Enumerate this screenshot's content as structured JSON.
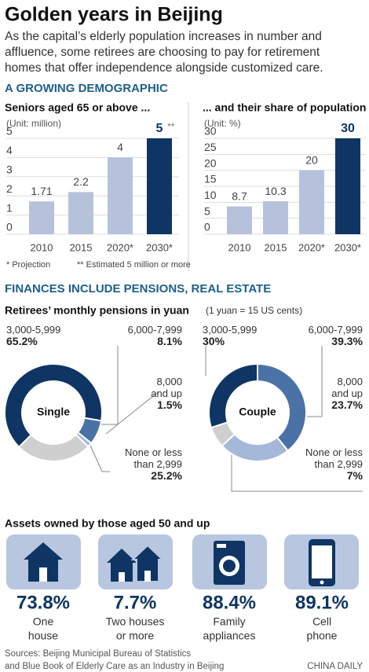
{
  "title": "Golden years in Beijing",
  "subtitle": [
    "As the capital’s elderly population increases in number and",
    "affluence, some retirees are choosing to pay for retirement",
    "homes that offer independence alongside customized care."
  ],
  "section_1": "A GROWING DEMOGRAPHIC",
  "section_2": "FINANCES INCLUDE PENSIONS, REAL ESTATE",
  "pensions_title": "Retirees’ monthly pensions in yuan",
  "pensions_note": "(1 yuan = 15 US cents)",
  "chart_data": [
    {
      "type": "bar",
      "title": "Seniors aged 65 or above ...",
      "unit": "(Unit: million)",
      "categories": [
        "2010",
        "2015",
        "2020*",
        "2030*"
      ],
      "values": [
        1.71,
        2.2,
        4,
        5
      ],
      "colors": [
        "#b6c2dc",
        "#b6c2dc",
        "#b6c2dc",
        "#0e3563"
      ],
      "ylim": [
        0,
        5
      ],
      "yticks": [
        0,
        1,
        2,
        3,
        4,
        5
      ],
      "grid": true,
      "annotation": "**",
      "notes": [
        "* Projection",
        "** Estimated 5 million or more"
      ]
    },
    {
      "type": "bar",
      "title": "... and their share of population",
      "unit": "(Unit: %)",
      "categories": [
        "2010",
        "2015",
        "2020*",
        "2030*"
      ],
      "values": [
        8.7,
        10.3,
        20,
        30
      ],
      "colors": [
        "#b6c2dc",
        "#b6c2dc",
        "#b6c2dc",
        "#0e3563"
      ],
      "ylim": [
        0,
        30
      ],
      "yticks": [
        0,
        5,
        10,
        15,
        20,
        25,
        30
      ],
      "grid": true
    },
    {
      "type": "donut",
      "title": "Single",
      "categories": [
        "3,000-5,999",
        "6,000-7,999",
        "8,000 and up",
        "None or less than 2,999"
      ],
      "values": [
        65.2,
        8.1,
        1.5,
        25.2
      ],
      "value_labels": [
        "65.2%",
        "8.1%",
        "1.5%",
        "25.2%"
      ],
      "colors": [
        "#0e3563",
        "#4a72a6",
        "#a4b8da",
        "#cfcfcf"
      ]
    },
    {
      "type": "donut",
      "title": "Couple",
      "categories": [
        "3,000-5,999",
        "6,000-7,999",
        "8,000 and up",
        "None or less than 2,999"
      ],
      "values": [
        30,
        39.3,
        23.7,
        7
      ],
      "value_labels": [
        "30%",
        "39.3%",
        "23.7%",
        "7%"
      ],
      "colors": [
        "#0e3563",
        "#4a72a6",
        "#a4b8da",
        "#cfcfcf"
      ]
    }
  ],
  "assets_title": "Assets owned by those aged 50 and up",
  "assets": [
    {
      "value": "73.8%",
      "label": [
        "One",
        "house"
      ]
    },
    {
      "value": "7.7%",
      "label": [
        "Two houses",
        "or more"
      ]
    },
    {
      "value": "88.4%",
      "label": [
        "Family",
        "appliances"
      ]
    },
    {
      "value": "89.1%",
      "label": [
        "Cell",
        "phone"
      ]
    }
  ],
  "sources": [
    "Sources: Beijing Municipal Bureau of Statistics",
    "and Blue Book of Elderly Care as an Industry in Beijing"
  ],
  "credit": "CHINA DAILY"
}
